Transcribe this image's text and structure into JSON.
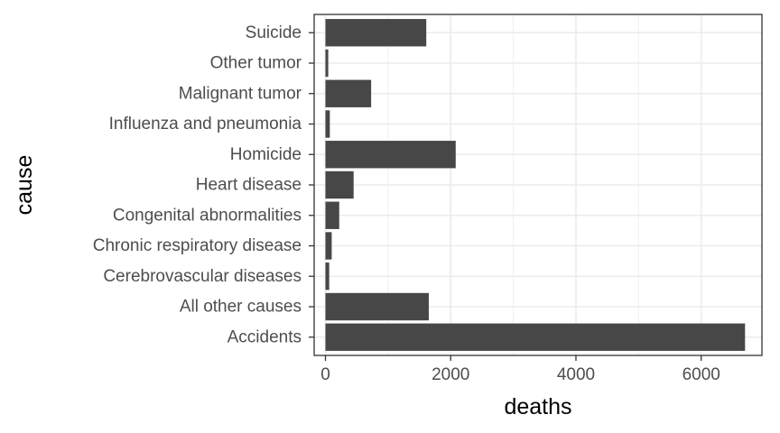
{
  "chart_data": {
    "type": "bar",
    "orientation": "horizontal",
    "categories": [
      "Accidents",
      "All other causes",
      "Cerebrovascular diseases",
      "Chronic respiratory disease",
      "Congenital abnormalities",
      "Heart disease",
      "Homicide",
      "Influenza and pneumonia",
      "Malignant tumor",
      "Other tumor",
      "Suicide"
    ],
    "values": [
      6700,
      1650,
      60,
      100,
      220,
      450,
      2080,
      70,
      730,
      45,
      1610
    ],
    "xlabel": "deaths",
    "ylabel": "cause",
    "xlim": [
      -180,
      6970
    ],
    "x_ticks": [
      0,
      2000,
      4000,
      6000
    ],
    "x_tick_labels": [
      "0",
      "2000",
      "4000",
      "6000"
    ],
    "grid": true,
    "bar_color": "#474747",
    "grid_color": "#ebebeb",
    "panel_border_color": "#333333"
  }
}
